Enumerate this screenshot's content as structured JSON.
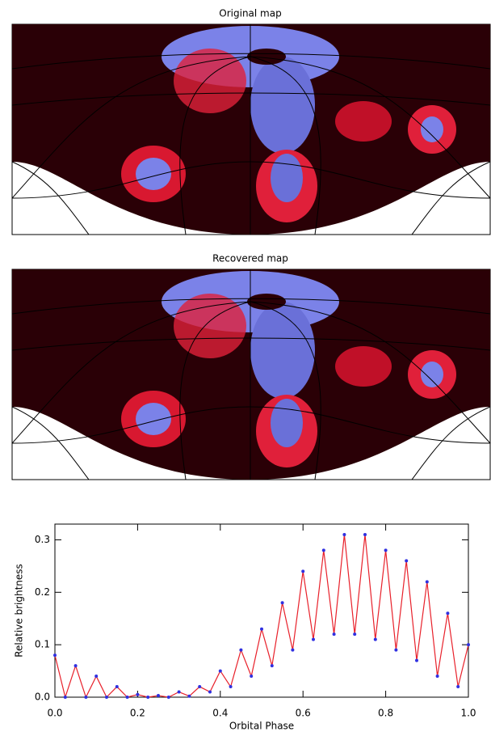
{
  "maps": [
    {
      "title": "Original map"
    },
    {
      "title": "Recovered map"
    }
  ],
  "chart_data": {
    "type": "line",
    "xlabel": "Orbital Phase",
    "ylabel": "Relative brightness",
    "x": [
      0,
      0.025,
      0.05,
      0.075,
      0.1,
      0.125,
      0.15,
      0.175,
      0.2,
      0.225,
      0.25,
      0.275,
      0.3,
      0.325,
      0.35,
      0.375,
      0.4,
      0.425,
      0.45,
      0.475,
      0.5,
      0.525,
      0.55,
      0.575,
      0.6,
      0.625,
      0.65,
      0.675,
      0.7,
      0.725,
      0.75,
      0.775,
      0.8,
      0.825,
      0.85,
      0.875,
      0.9,
      0.925,
      0.95,
      0.975,
      1.0
    ],
    "series": [
      {
        "color": "#e8202a",
        "marker_color": "#3030e0",
        "values": [
          0.08,
          0.0,
          0.06,
          0.0,
          0.04,
          0.0,
          0.02,
          0.0,
          0.005,
          0.0,
          0.003,
          0.0,
          0.01,
          0.002,
          0.02,
          0.01,
          0.05,
          0.02,
          0.09,
          0.04,
          0.13,
          0.06,
          0.18,
          0.09,
          0.24,
          0.11,
          0.28,
          0.12,
          0.31,
          0.12,
          0.31,
          0.11,
          0.28,
          0.09,
          0.26,
          0.07,
          0.22,
          0.04,
          0.16,
          0.02,
          0.1
        ]
      }
    ],
    "xlim": [
      0,
      1
    ],
    "xticks": [
      {
        "value": 0,
        "label": "0.0"
      },
      {
        "value": 0.2,
        "label": "0.2"
      },
      {
        "value": 0.4,
        "label": "0.4"
      },
      {
        "value": 0.6,
        "label": "0.6"
      },
      {
        "value": 0.8,
        "label": "0.8"
      },
      {
        "value": 1,
        "label": "1.0"
      }
    ],
    "ylim": [
      0,
      0.33
    ],
    "yticks": [
      {
        "value": 0,
        "label": "0.0"
      },
      0.1,
      0.2,
      0.3
    ]
  }
}
